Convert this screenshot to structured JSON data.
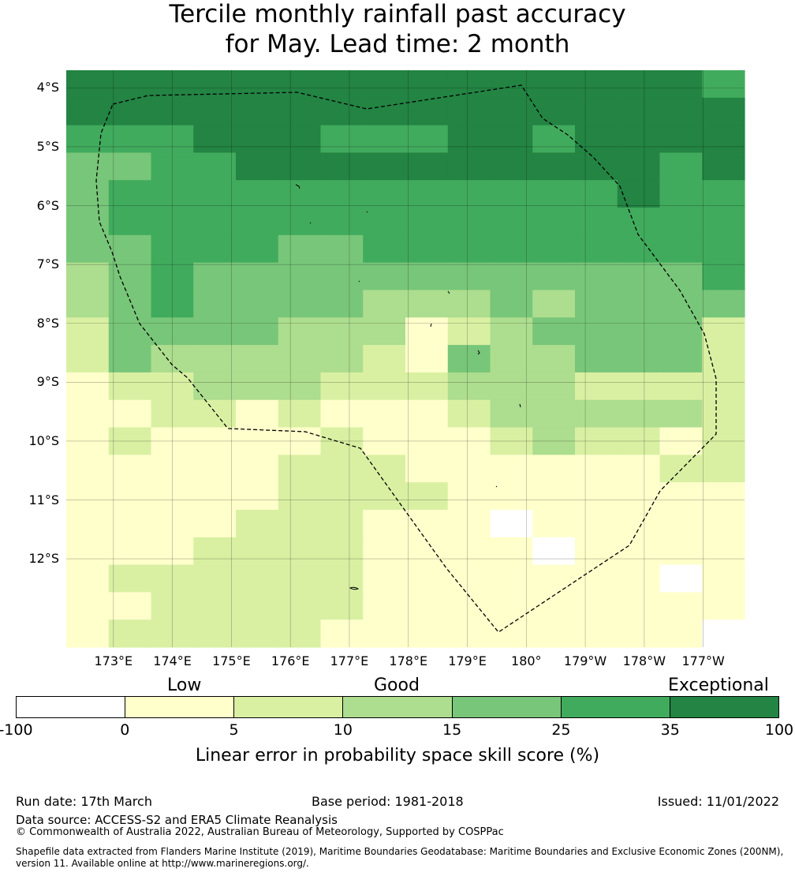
{
  "title": {
    "line1": "Tercile monthly rainfall past accuracy",
    "line2": "for May. Lead time: 2 month"
  },
  "map": {
    "lat_labels": [
      "4°S",
      "5°S",
      "6°S",
      "7°S",
      "8°S",
      "9°S",
      "10°S",
      "11°S",
      "12°S"
    ],
    "lon_labels": [
      "173°E",
      "174°E",
      "175°E",
      "176°E",
      "177°E",
      "178°E",
      "179°E",
      "180°",
      "179°W",
      "178°W",
      "177°W"
    ],
    "lon_range_deg_east": [
      172.2,
      183.7
    ],
    "lat_range_deg_north": [
      -13.5,
      -3.7
    ],
    "boundary_style": "dashed black line (EEZ)",
    "class_colors": [
      "#ffffff",
      "#ffffcc",
      "#d9f0a3",
      "#addd8e",
      "#78c679",
      "#41ab5d",
      "#238443"
    ],
    "grid_classes": [
      "6666666666666665",
      "6666666666666666",
      "5556665556656666",
      "4455666666666656",
      "4555555555555655",
      "4555555555555555",
      "4455544555555555",
      "3454444444444445",
      "3454444333434444",
      "2444433312344442",
      "2433333214334442",
      "1223332223332222",
      "1122121112333332",
      "1211112111232212",
      "1111122211111122",
      "1111122221111111",
      "1111222111011111",
      "1112222111101111",
      "1222222111111101",
      "1122222111111111",
      "1222221111111110"
    ]
  },
  "colorbar": {
    "categories": [
      "Low",
      "Good",
      "Exceptional"
    ],
    "ticks": [
      "-100",
      "0",
      "5",
      "10",
      "15",
      "25",
      "35",
      "100"
    ],
    "colors": [
      "#ffffff",
      "#ffffcc",
      "#d9f0a3",
      "#addd8e",
      "#78c679",
      "#41ab5d",
      "#238443"
    ],
    "label": "Linear error in probability space skill score (%)"
  },
  "footer": {
    "run_date": "Run date: 17th March",
    "base_period": "Base period: 1981-2018",
    "issued": "Issued: 11/01/2022",
    "data_source": "Data source: ACCESS-S2 and ERA5 Climate Reanalysis",
    "copyright": "© Commonwealth of Australia 2022, Australian Bureau of Meteorology, Supported by COSPPac",
    "shapefile": "Shapefile data extracted from Flanders Marine Institute (2019), Maritime Boundaries Geodatabase: Maritime Boundaries and Exclusive Economic Zones (200NM), version 11. Available online at http://www.marineregions.org/."
  }
}
